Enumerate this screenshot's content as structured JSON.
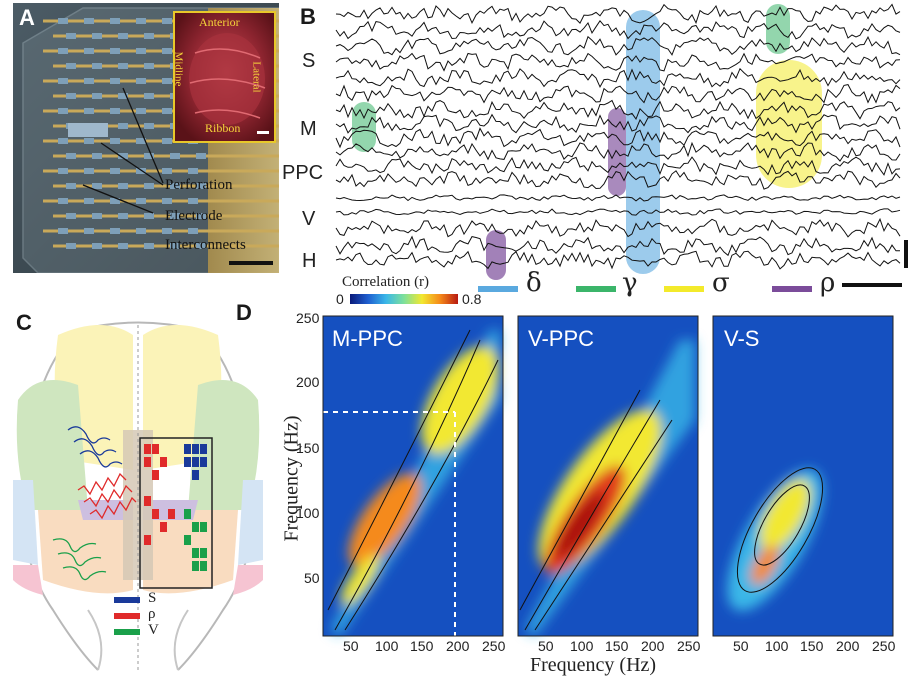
{
  "panels": {
    "a": {
      "letter": "A",
      "inset_labels": [
        "Anterior",
        "Midline",
        "Lateral",
        "Ribbon"
      ],
      "callouts": [
        "Perforation",
        "Electrode",
        "Interconnects"
      ]
    },
    "b": {
      "letter": "B",
      "rows": [
        "S",
        "M",
        "PPC",
        "V",
        "H"
      ],
      "colorbar_label": "Correlation (r)",
      "colorbar_min": "0",
      "colorbar_max": "0.8",
      "bands": [
        {
          "symbol": "δ",
          "color": "#5aa9df"
        },
        {
          "symbol": "γ",
          "color": "#3bb56a"
        },
        {
          "symbol": "σ",
          "color": "#f3ea2b"
        },
        {
          "symbol": "ρ",
          "color": "#7b4c9a"
        }
      ]
    },
    "c": {
      "letter": "C",
      "legend": [
        {
          "label": "S",
          "color": "#1a3a9a"
        },
        {
          "label": "ρ",
          "color": "#e02a2a"
        },
        {
          "label": "V",
          "color": "#1aa04a"
        }
      ]
    },
    "d": {
      "letter": "D",
      "ylabel": "Frequency (Hz)",
      "xlabel": "Frequency (Hz)",
      "yticks": [
        "250",
        "200",
        "150",
        "100",
        "50"
      ],
      "xticks_1": [
        "50",
        "100",
        "150",
        "200",
        "250"
      ],
      "xticks_2": [
        "50",
        "100",
        "150",
        "200",
        "250"
      ],
      "xticks_3": [
        "50",
        "100",
        "150",
        "200",
        "250"
      ],
      "maps": [
        {
          "title": "M-PPC"
        },
        {
          "title": "V-PPC"
        },
        {
          "title": "V-S"
        }
      ]
    }
  },
  "chart_data": {
    "type": "heatmap",
    "xlabel": "Frequency (Hz)",
    "ylabel": "Frequency (Hz)",
    "xlim": [
      0,
      250
    ],
    "ylim": [
      0,
      250
    ],
    "colorbar": {
      "label": "Correlation (r)",
      "range": [
        0,
        0.8
      ]
    },
    "maps": [
      {
        "title": "M-PPC",
        "ridge_peak_hz": [
          180,
          180
        ],
        "peak_r": 0.7
      },
      {
        "title": "V-PPC",
        "ridge_peak_hz": [
          90,
          90
        ],
        "peak_r": 0.8
      },
      {
        "title": "V-S",
        "ridge_peak_hz": [
          100,
          100
        ],
        "peak_r": 0.55
      }
    ]
  }
}
